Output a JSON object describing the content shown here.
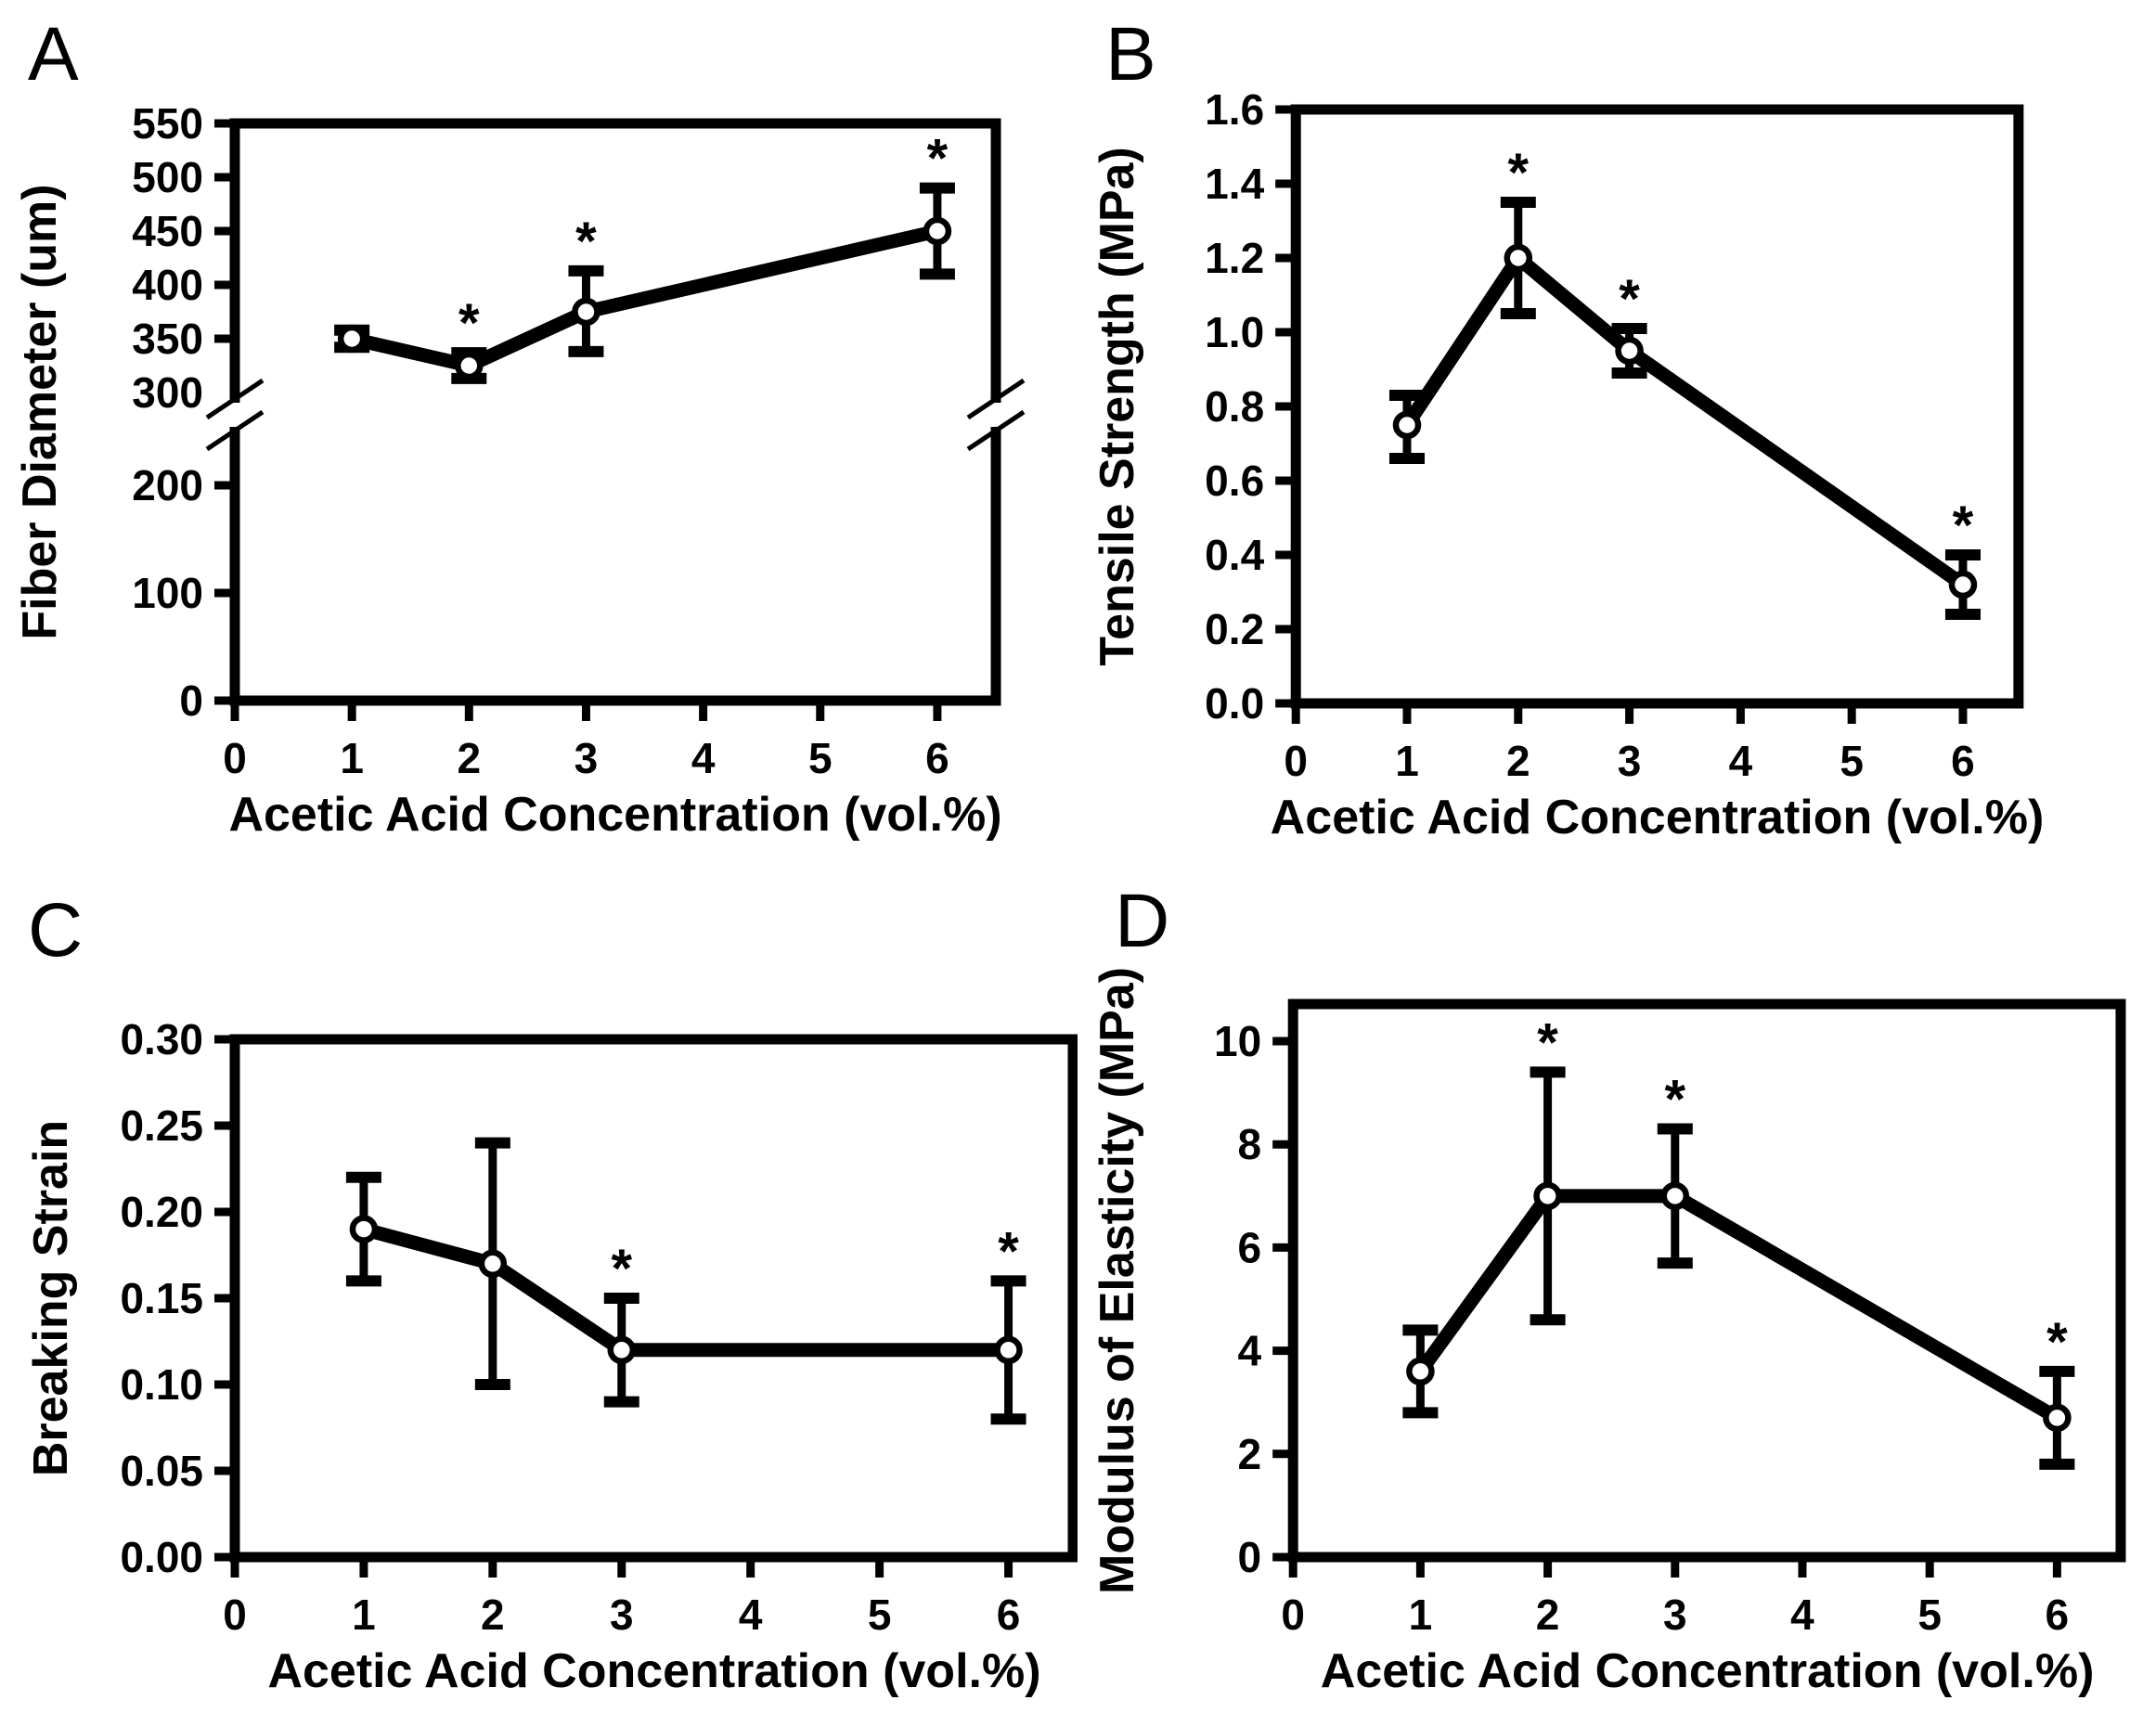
{
  "figure": {
    "background_color": "#ffffff",
    "foreground_color": "#000000",
    "shared_xlabel": "Acetic Acid Concentration (vol.%)",
    "panels_order": [
      "A",
      "B",
      "C",
      "D"
    ]
  },
  "chart_data": [
    {
      "panel_label": "A",
      "type": "line",
      "xlabel": "Acetic Acid Concentration (vol.%)",
      "ylabel": "Fiber Diameter (um)",
      "x": [
        1,
        2,
        3,
        6
      ],
      "y": [
        350,
        325,
        375,
        450
      ],
      "y_err_low": [
        342,
        313,
        338,
        410
      ],
      "y_err_high": [
        358,
        337,
        413,
        490
      ],
      "significance": [
        "",
        "*",
        "*",
        "*"
      ],
      "x_tick_values": [
        0,
        1,
        2,
        3,
        4,
        5,
        6
      ],
      "x_tick_labels": [
        "0",
        "1",
        "2",
        "3",
        "4",
        "5",
        "6"
      ],
      "xlim": [
        0,
        6.5
      ],
      "y_tick_values": [
        0,
        100,
        200,
        300,
        350,
        400,
        450,
        500,
        550
      ],
      "y_tick_labels": [
        "0",
        "100",
        "200",
        "300",
        "350",
        "400",
        "450",
        "500",
        "550"
      ],
      "ylim": [
        0,
        550
      ],
      "y_axis_break": {
        "between": [
          200,
          300
        ]
      },
      "marker": "open-circle",
      "line_color": "#000000",
      "grid": false,
      "legend": null
    },
    {
      "panel_label": "B",
      "type": "line",
      "xlabel": "Acetic Acid Concentration (vol.%)",
      "ylabel": "Tensile Strength (MPa)",
      "x": [
        1,
        2,
        3,
        6
      ],
      "y": [
        0.75,
        1.2,
        0.95,
        0.32
      ],
      "y_err_low": [
        0.66,
        1.05,
        0.89,
        0.24
      ],
      "y_err_high": [
        0.83,
        1.35,
        1.01,
        0.4
      ],
      "significance": [
        "",
        "*",
        "*",
        "*"
      ],
      "x_tick_values": [
        0,
        1,
        2,
        3,
        4,
        5,
        6
      ],
      "x_tick_labels": [
        "0",
        "1",
        "2",
        "3",
        "4",
        "5",
        "6"
      ],
      "xlim": [
        0,
        6.5
      ],
      "y_tick_values": [
        0,
        0.2,
        0.4,
        0.6,
        0.8,
        1.0,
        1.2,
        1.4,
        1.6
      ],
      "y_tick_labels": [
        "0.0",
        "0.2",
        "0.4",
        "0.6",
        "0.8",
        "1.0",
        "1.2",
        "1.4",
        "1.6"
      ],
      "ylim": [
        0,
        1.6
      ],
      "y_axis_break": null,
      "marker": "open-circle",
      "line_color": "#000000",
      "grid": false,
      "legend": null
    },
    {
      "panel_label": "C",
      "type": "line",
      "xlabel": "Acetic Acid Concentration (vol.%)",
      "ylabel": "Breaking Strain",
      "x": [
        1,
        2,
        3,
        6
      ],
      "y": [
        0.19,
        0.17,
        0.12,
        0.12
      ],
      "y_err_low": [
        0.16,
        0.1,
        0.09,
        0.08
      ],
      "y_err_high": [
        0.22,
        0.24,
        0.15,
        0.16
      ],
      "significance": [
        "",
        "",
        "*",
        "*"
      ],
      "x_tick_values": [
        0,
        1,
        2,
        3,
        4,
        5,
        6
      ],
      "x_tick_labels": [
        "0",
        "1",
        "2",
        "3",
        "4",
        "5",
        "6"
      ],
      "xlim": [
        0,
        6.5
      ],
      "y_tick_values": [
        0,
        0.05,
        0.1,
        0.15,
        0.2,
        0.25,
        0.3
      ],
      "y_tick_labels": [
        "0.00",
        "0.05",
        "0.10",
        "0.15",
        "0.20",
        "0.25",
        "0.30"
      ],
      "ylim": [
        0,
        0.3
      ],
      "y_axis_break": null,
      "marker": "open-circle",
      "line_color": "#000000",
      "grid": false,
      "legend": null
    },
    {
      "panel_label": "D",
      "type": "line",
      "xlabel": "Acetic Acid Concentration (vol.%)",
      "ylabel": "Modulus of Elasticity (MPa)",
      "x": [
        1,
        2,
        3,
        6
      ],
      "y": [
        3.6,
        7.0,
        7.0,
        2.7
      ],
      "y_err_low": [
        2.8,
        4.6,
        5.7,
        1.8
      ],
      "y_err_high": [
        4.4,
        9.4,
        8.3,
        3.6
      ],
      "significance": [
        "",
        "*",
        "*",
        "*"
      ],
      "x_tick_values": [
        0,
        1,
        2,
        3,
        4,
        5,
        6
      ],
      "x_tick_labels": [
        "0",
        "1",
        "2",
        "3",
        "4",
        "5",
        "6"
      ],
      "xlim": [
        0,
        6.5
      ],
      "y_tick_values": [
        0,
        2,
        4,
        6,
        8,
        10
      ],
      "y_tick_labels": [
        "0",
        "2",
        "4",
        "6",
        "8",
        "10"
      ],
      "ylim": [
        0,
        10.7
      ],
      "y_axis_break": null,
      "marker": "open-circle",
      "line_color": "#000000",
      "grid": false,
      "legend": null
    }
  ]
}
